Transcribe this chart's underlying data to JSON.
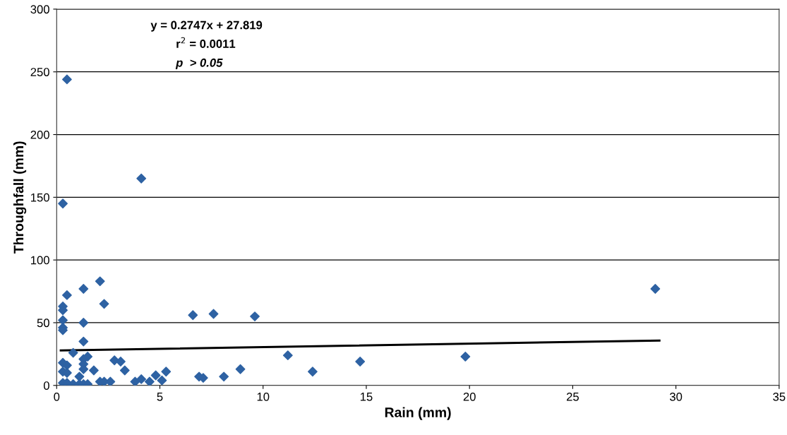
{
  "chart_data": {
    "type": "scatter",
    "xlabel": "Rain (mm)",
    "ylabel": "Throughfall (mm)",
    "annotations": [
      "y = 0.2747x + 27.819",
      "r$^{2}$ = 0.0011",
      "p  > 0.05"
    ],
    "series": [
      {
        "color": "#2e62a3",
        "marker": "diamond",
        "x": [
          0.5,
          0.3,
          4.1,
          29.0,
          2.1,
          1.3,
          0.5,
          2.3,
          0.3,
          0.3,
          0.3,
          1.3,
          0.3,
          0.3,
          6.6,
          7.6,
          9.6,
          1.3,
          0.8,
          0.3,
          0.5,
          1.3,
          1.3,
          1.3,
          1.5,
          1.8,
          2.8,
          3.1,
          3.3,
          0.3,
          0.5,
          0.3,
          0.5,
          0.8,
          1.1,
          1.1,
          1.3,
          1.5,
          2.1,
          2.3,
          2.6,
          3.8,
          4.1,
          4.5,
          4.8,
          5.1,
          5.3,
          6.9,
          7.1,
          8.1,
          8.9,
          11.2,
          12.4,
          14.7,
          19.8
        ],
        "values": [
          244,
          145,
          165,
          77,
          83,
          77,
          72,
          65,
          63,
          60,
          52,
          50,
          46,
          44,
          56,
          57,
          55,
          35,
          26,
          18,
          16,
          21,
          17,
          13,
          23,
          12,
          20,
          19,
          12,
          11,
          10,
          2,
          2,
          1,
          7,
          1,
          1,
          1,
          3,
          3,
          3,
          3,
          5,
          3,
          8,
          4,
          11,
          7,
          6,
          7,
          13,
          24,
          11,
          19,
          23
        ]
      },
      {
        "type": "line",
        "color": "#000000",
        "marker": "none",
        "line_style": "solid",
        "x": [
          0.2,
          29.2
        ],
        "values": [
          27.9,
          35.8
        ]
      }
    ],
    "xlim": [
      0,
      35
    ],
    "xticks": [
      0,
      5,
      10,
      15,
      20,
      25,
      30,
      35
    ],
    "ylim": [
      0,
      300
    ],
    "yticks": [
      0,
      50,
      100,
      150,
      200,
      250,
      300
    ],
    "grid": "y",
    "legend": false
  }
}
